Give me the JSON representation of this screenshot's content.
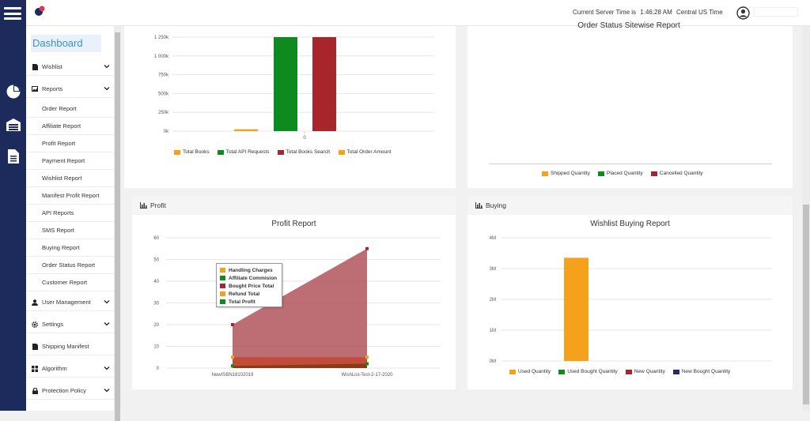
{
  "header": {
    "server_label": "Current Server Time is",
    "server_time": "1:46:28 AM",
    "timezone": "Central US Time",
    "notification_badge_color": "#e0345a"
  },
  "sidebar": {
    "title": "Dashboard",
    "items": [
      {
        "label": "Wishlist",
        "icon": "file-icon",
        "expandable": true
      },
      {
        "label": "Reports",
        "icon": "image-icon",
        "expandable": true,
        "expanded": true
      },
      {
        "label": "User Management",
        "icon": "user-icon",
        "expandable": true
      },
      {
        "label": "Settings",
        "icon": "gear-icon",
        "expandable": true
      },
      {
        "label": "Shipping Manifest",
        "icon": "document-icon",
        "expandable": false
      },
      {
        "label": "Algorithm",
        "icon": "grid-icon",
        "expandable": true
      },
      {
        "label": "Protection Policy",
        "icon": "lock-icon",
        "expandable": true
      }
    ],
    "report_subitems": [
      "Order Report",
      "Affiliate Report",
      "Profit Report",
      "Payment Report",
      "Wishlist Report",
      "Manifest Profit Report",
      "API Reports",
      "SMS Report",
      "Buying Report",
      "Order Status Report",
      "Customer Report"
    ]
  },
  "colors": {
    "orange": "#f5a11c",
    "green": "#0f8a1f",
    "red": "#a8262b",
    "navy": "#232a5c",
    "area_red": "#b1555c",
    "rail": "#1d2b5c",
    "accent": "#3b8fc9"
  },
  "api_chart": {
    "legend": [
      "Total Books",
      "Total API Requests",
      "Total Books Search",
      "Total Order Amount"
    ],
    "ticks": [
      "1 250k",
      "1 000k",
      "750k",
      "500k",
      "250k",
      "0k"
    ],
    "xlabel": "0"
  },
  "order_status": {
    "title": "Order Status Sitewise Report",
    "legend": [
      "Shipped Quantity",
      "Placed Quantity",
      "Cancelled Quantity"
    ]
  },
  "profit_panel": {
    "heading": "Profit",
    "title": "Profit Report",
    "ticks": [
      "60",
      "50",
      "40",
      "30",
      "20",
      "10",
      "0"
    ],
    "tooltip": [
      "Handling Charges",
      "Affiliate Commision",
      "Bought Price Total",
      "Refund Total",
      "Total Profit"
    ]
  },
  "buying_panel": {
    "heading": "Buying",
    "title": "Wishlist Buying Report",
    "ticks": [
      "4M",
      "3M",
      "2M",
      "1M",
      "0M"
    ],
    "legend": [
      "Used Quantity",
      "Used Bought Quantity",
      "New Quantity",
      "New Bought Quantity"
    ]
  },
  "chart_data": [
    {
      "type": "bar",
      "categories": [
        "0"
      ],
      "ylim": [
        0,
        1250000
      ],
      "series": [
        {
          "name": "Total Books",
          "values": [
            25000
          ]
        },
        {
          "name": "Total API Requests",
          "values": [
            1250000
          ]
        },
        {
          "name": "Total Books Search",
          "values": [
            1250000
          ]
        },
        {
          "name": "Total Order Amount",
          "values": [
            0
          ]
        }
      ],
      "legend_position": "bottom",
      "grid": true
    },
    {
      "type": "area",
      "title": "Profit Report",
      "x": [
        "NewISBN18102019",
        "WishList-Test-2-17-2020"
      ],
      "ylim": [
        0,
        60
      ],
      "series": [
        {
          "name": "Handling Charges",
          "values": [
            5,
            5
          ]
        },
        {
          "name": "Affiliate Commision",
          "values": [
            0,
            0
          ]
        },
        {
          "name": "Bought Price Total",
          "values": [
            20,
            55
          ]
        },
        {
          "name": "Refund Total",
          "values": [
            0,
            0
          ]
        },
        {
          "name": "Total Profit",
          "values": [
            1,
            2
          ]
        }
      ],
      "grid": true
    },
    {
      "type": "bar",
      "title": "Wishlist Buying Report",
      "categories": [
        ""
      ],
      "ylim": [
        0,
        4000000
      ],
      "series": [
        {
          "name": "Used Quantity",
          "values": [
            3350000
          ]
        },
        {
          "name": "Used Bought Quantity",
          "values": [
            0
          ]
        },
        {
          "name": "New Quantity",
          "values": [
            0
          ]
        },
        {
          "name": "New Bought Quantity",
          "values": [
            0
          ]
        }
      ],
      "legend_position": "bottom",
      "grid": true
    }
  ]
}
